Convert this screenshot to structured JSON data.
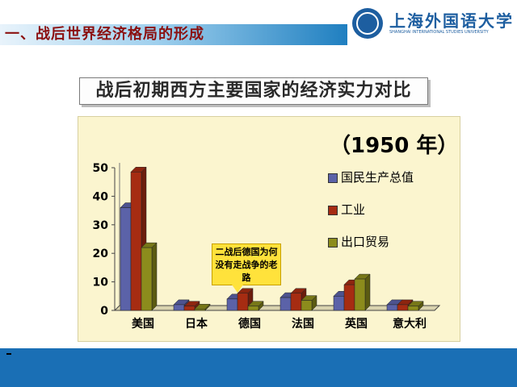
{
  "header": {
    "title": "一、战后世界经济格局的形成",
    "logo_cn": "上海外国语大学",
    "logo_en": "SHANGHAI INTERNATIONAL STUDIES UNIVERSITY"
  },
  "slide": {
    "subtitle": "战后初期西方主要国家的经济实力对比",
    "year_label": "（1950 年）",
    "callout": "二战后德国为何没有走战争的老路"
  },
  "colors": {
    "gnp": "#5b62a8",
    "industry": "#a62c12",
    "trade": "#8c8c1c",
    "header_accent": "#8b1010",
    "footer": "#1a6fb5"
  },
  "chart_data": {
    "type": "bar",
    "categories": [
      "美国",
      "日本",
      "德国",
      "法国",
      "英国",
      "意大利"
    ],
    "series": [
      {
        "name": "国民生产总值",
        "values": [
          36,
          2,
          4,
          4.5,
          5,
          2
        ]
      },
      {
        "name": "工业",
        "values": [
          48.5,
          1.5,
          6,
          6,
          9,
          2
        ]
      },
      {
        "name": "出口贸易",
        "values": [
          22,
          0.5,
          1.5,
          3.5,
          11,
          1.5
        ]
      }
    ],
    "yticks": [
      0,
      10,
      20,
      30,
      40,
      50
    ],
    "ylim": [
      0,
      50
    ],
    "legend_position": "right",
    "grid": false
  }
}
